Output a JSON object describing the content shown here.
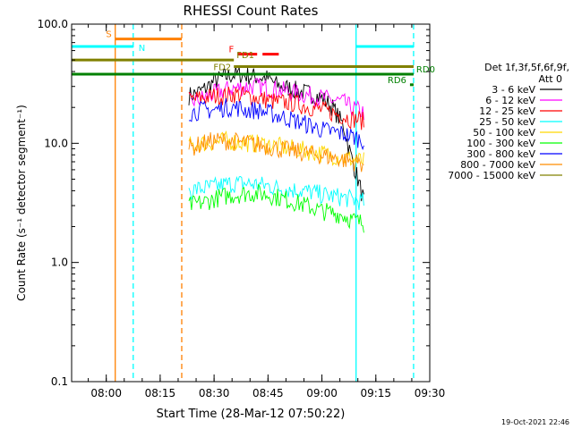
{
  "chart_data": {
    "type": "line",
    "title": "RHESSI Count Rates",
    "xlabel": "Start Time (28-Mar-12 07:50:22)",
    "ylabel": "Count Rate (s⁻¹ detector segment⁻¹)",
    "y_scale": "log",
    "ylim": [
      0.1,
      100.0
    ],
    "xlim": [
      "07:50:22",
      "09:30:00"
    ],
    "y_ticks": [
      "0.1",
      "1.0",
      "10.0",
      "100.0"
    ],
    "x_ticks": [
      "08:00",
      "08:15",
      "08:30",
      "08:45",
      "09:00",
      "09:15",
      "09:30"
    ],
    "legend_header": [
      "Det 1f,3f,5f,6f,9f,",
      "Att 0"
    ],
    "legend_position": "right",
    "timestamp": "19-Oct-2021 22:46",
    "series": [
      {
        "name": "3 - 6 keV",
        "color": "#000000",
        "x": [
          "08:23",
          "08:27",
          "08:30",
          "08:33",
          "08:36",
          "08:39",
          "08:42",
          "08:45",
          "08:48",
          "08:51",
          "08:54",
          "08:57",
          "09:00",
          "09:03",
          "09:06",
          "09:08",
          "09:10",
          "09:12"
        ],
        "values": [
          25,
          28,
          33,
          36,
          38,
          37,
          36,
          35,
          30,
          29,
          27,
          26,
          24,
          20,
          14,
          8,
          5,
          3
        ]
      },
      {
        "name": "6 - 12 keV",
        "color": "#ff00ff",
        "x": [
          "08:23",
          "08:27",
          "08:30",
          "08:33",
          "08:36",
          "08:39",
          "08:42",
          "08:45",
          "08:48",
          "08:51",
          "08:54",
          "08:57",
          "09:00",
          "09:03",
          "09:06",
          "09:08",
          "09:10",
          "09:12"
        ],
        "values": [
          22,
          24,
          26,
          28,
          29,
          30,
          30,
          29,
          28,
          27,
          26,
          25,
          24,
          23,
          22,
          20,
          19,
          18
        ]
      },
      {
        "name": "12 - 25 keV",
        "color": "#ff0000",
        "x": [
          "08:23",
          "08:27",
          "08:30",
          "08:33",
          "08:36",
          "08:39",
          "08:42",
          "08:45",
          "08:48",
          "08:51",
          "08:54",
          "08:57",
          "09:00",
          "09:03",
          "09:06",
          "09:08",
          "09:10",
          "09:12"
        ],
        "values": [
          23,
          24,
          25,
          25,
          26,
          25,
          24,
          23,
          22,
          22,
          21,
          20,
          19,
          18,
          17,
          16,
          16,
          15
        ]
      },
      {
        "name": "25 - 50 keV",
        "color": "#00ffff",
        "x": [
          "08:23",
          "08:27",
          "08:30",
          "08:33",
          "08:36",
          "08:39",
          "08:42",
          "08:45",
          "08:48",
          "08:51",
          "08:54",
          "08:57",
          "09:00",
          "09:03",
          "09:06",
          "09:08",
          "09:10",
          "09:12"
        ],
        "values": [
          4.0,
          4.2,
          4.3,
          4.5,
          4.6,
          4.6,
          4.5,
          4.4,
          4.2,
          4.1,
          4.0,
          3.9,
          3.7,
          3.6,
          3.5,
          3.4,
          3.3,
          3.2
        ]
      },
      {
        "name": "50 - 100 keV",
        "color": "#ffd700",
        "x": [
          "08:23",
          "08:27",
          "08:30",
          "08:33",
          "08:36",
          "08:39",
          "08:42",
          "08:45",
          "08:48",
          "08:51",
          "08:54",
          "08:57",
          "09:00",
          "09:03",
          "09:06",
          "09:08",
          "09:10",
          "09:12"
        ],
        "values": [
          9.5,
          10.0,
          10.2,
          10.5,
          10.3,
          10.1,
          9.9,
          9.7,
          9.4,
          9.1,
          8.8,
          8.5,
          8.2,
          7.9,
          7.6,
          7.4,
          7.2,
          7.0
        ]
      },
      {
        "name": "100 - 300 keV",
        "color": "#00ff00",
        "x": [
          "08:23",
          "08:27",
          "08:30",
          "08:33",
          "08:36",
          "08:39",
          "08:42",
          "08:45",
          "08:48",
          "08:51",
          "08:54",
          "08:57",
          "09:00",
          "09:03",
          "09:06",
          "09:08",
          "09:10",
          "09:12"
        ],
        "values": [
          3.0,
          3.2,
          3.4,
          3.6,
          3.7,
          3.8,
          3.8,
          3.7,
          3.5,
          3.3,
          3.1,
          2.9,
          2.7,
          2.6,
          2.5,
          2.3,
          2.2,
          2.1
        ]
      },
      {
        "name": "300 - 800 keV",
        "color": "#0000ff",
        "x": [
          "08:23",
          "08:27",
          "08:30",
          "08:33",
          "08:36",
          "08:39",
          "08:42",
          "08:45",
          "08:48",
          "08:51",
          "08:54",
          "08:57",
          "09:00",
          "09:03",
          "09:06",
          "09:08",
          "09:10",
          "09:12"
        ],
        "values": [
          18,
          19,
          19,
          20,
          20,
          19,
          19,
          18,
          17,
          16,
          15,
          14,
          13,
          12.5,
          12,
          11.5,
          11,
          10.5
        ]
      },
      {
        "name": "800 - 7000 keV",
        "color": "#ff8c00",
        "x": [
          "08:23",
          "08:27",
          "08:30",
          "08:33",
          "08:36",
          "08:39",
          "08:42",
          "08:45",
          "08:48",
          "08:51",
          "08:54",
          "08:57",
          "09:00",
          "09:03",
          "09:06",
          "09:08",
          "09:10",
          "09:12"
        ],
        "values": [
          9,
          10,
          10.5,
          10.5,
          10.3,
          10,
          9.7,
          9.4,
          9.0,
          8.7,
          8.4,
          8.1,
          7.9,
          7.6,
          7.3,
          7.1,
          6.9,
          6.7
        ]
      },
      {
        "name": "7000 - 15000 keV",
        "color": "#808000",
        "x": [],
        "values": []
      }
    ],
    "state_bars": [
      {
        "label": "S",
        "color": "#ff8000",
        "start": "08:02:30",
        "end": "08:21:00",
        "level": 75,
        "line": "solid",
        "label_side": "left"
      },
      {
        "label": "N",
        "color": "#00ffff",
        "start": "07:50:22",
        "end": "08:07:30",
        "level": 65,
        "line": "solid",
        "label_side": "end-below"
      },
      {
        "label": "N",
        "color": "#00ffff",
        "start": "09:09:30",
        "end": "09:25:30",
        "level": 65,
        "line": "solid",
        "label_side": "none"
      },
      {
        "label": "F",
        "color": "#ff0000",
        "start": "08:36:30",
        "end": "08:48:00",
        "level": 56,
        "line": "dashed",
        "label_side": "left"
      },
      {
        "label": "FD1",
        "color": "#808000",
        "start": "07:50:22",
        "end": "08:35:30",
        "level": 50,
        "line": "solid",
        "label_side": "end-right"
      },
      {
        "label": "FD2",
        "color": "#808000",
        "start": "08:35:30",
        "end": "09:25:30",
        "level": 44,
        "line": "solid",
        "label_side": "start-left"
      },
      {
        "label": "RD0",
        "color": "#008000",
        "start": "07:50:22",
        "end": "09:25:30",
        "level": 38,
        "line": "solid",
        "label_side": "end-right"
      },
      {
        "label": "RD6",
        "color": "#008000",
        "start": "09:24:30",
        "end": "09:25:30",
        "level": 31,
        "line": "solid",
        "label_side": "left"
      }
    ],
    "vertical_markers": [
      {
        "time": "08:02:30",
        "color": "#ff8000",
        "style": "solid"
      },
      {
        "time": "08:07:30",
        "color": "#00ffff",
        "style": "dashed"
      },
      {
        "time": "08:21:00",
        "color": "#ff8000",
        "style": "dashed"
      },
      {
        "time": "09:09:30",
        "color": "#00ffff",
        "style": "solid"
      },
      {
        "time": "09:25:30",
        "color": "#00ffff",
        "style": "dashed"
      }
    ]
  }
}
